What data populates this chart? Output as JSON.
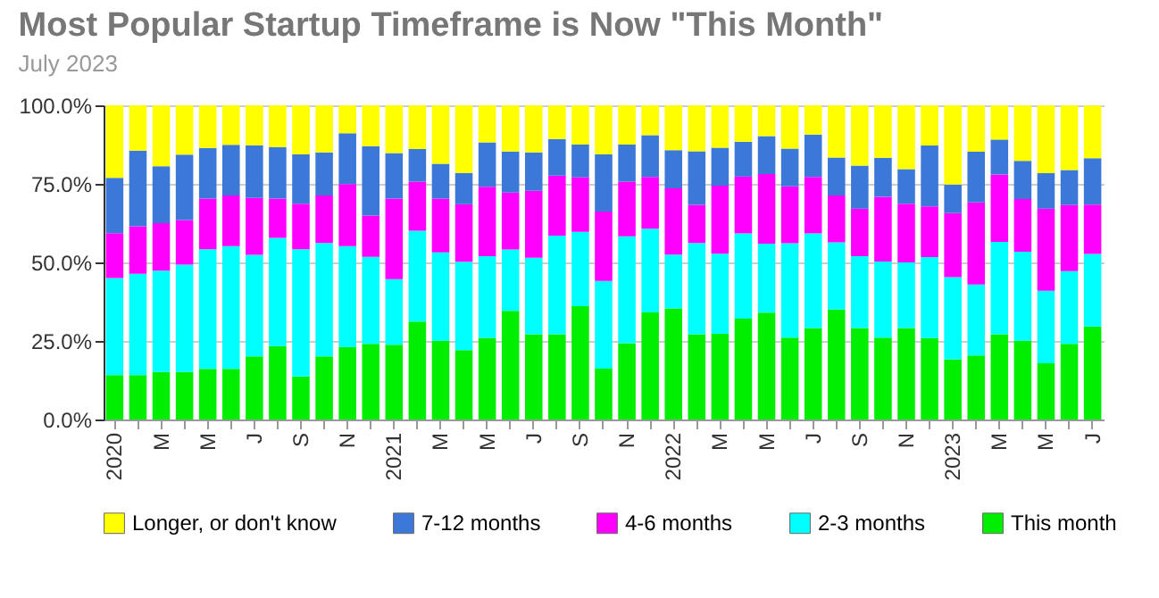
{
  "chart_data": {
    "type": "bar",
    "stacked": true,
    "title": "Most Popular Startup Timeframe is Now \"This Month\"",
    "subtitle": "July 2023",
    "categories": [
      "2020",
      null,
      "M",
      null,
      "M",
      null,
      "J",
      null,
      "S",
      null,
      "N",
      null,
      "2021",
      null,
      "M",
      null,
      "M",
      null,
      "J",
      null,
      "S",
      null,
      "N",
      null,
      "2022",
      null,
      "M",
      null,
      "M",
      null,
      "J",
      null,
      "S",
      null,
      "N",
      null,
      "2023",
      null,
      "M",
      null,
      "M",
      null,
      "J"
    ],
    "ylim": [
      0,
      100
    ],
    "yticks": [
      {
        "value": 0,
        "label": "0.0%"
      },
      {
        "value": 25,
        "label": "25.0%"
      },
      {
        "value": 50,
        "label": "50.0%"
      },
      {
        "value": 75,
        "label": "75.0%"
      },
      {
        "value": 100,
        "label": "100.0%"
      }
    ],
    "grid": "y",
    "legend": "bottom",
    "series": [
      {
        "name": "This month",
        "color": "#00ee00",
        "values": [
          14.1,
          14.1,
          15.1,
          15.1,
          16.1,
          16.1,
          20.1,
          23.4,
          13.7,
          20.1,
          23.1,
          24.1,
          23.8,
          31.2,
          25.1,
          22.1,
          26.0,
          34.6,
          27.1,
          27.1,
          36.1,
          16.2,
          24.3,
          34.1,
          35.4,
          27.1,
          27.3,
          32.1,
          34.0,
          26.1,
          29.1,
          35.0,
          29.1,
          26.1,
          29.1,
          25.9,
          19.2,
          20.4,
          27.1,
          25.1,
          17.9,
          24.1,
          29.6
        ]
      },
      {
        "name": "2-3 months",
        "color": "#00ffff",
        "values": [
          30.9,
          32.3,
          32.3,
          34.2,
          38.1,
          39.1,
          32.3,
          34.4,
          40.5,
          36.1,
          32.1,
          27.7,
          20.9,
          28.9,
          28.1,
          28.1,
          26.0,
          19.5,
          24.4,
          31.4,
          23.6,
          27.9,
          34.0,
          26.6,
          17.1,
          29.1,
          25.5,
          27.1,
          22.0,
          30.0,
          30.1,
          21.4,
          22.9,
          24.2,
          20.9,
          25.8,
          26.1,
          22.6,
          29.4,
          28.3,
          23.1,
          23.1,
          23.1
        ]
      },
      {
        "name": "4-6 months",
        "color": "#ff00ff",
        "values": [
          14.3,
          15.1,
          15.1,
          14.2,
          16.1,
          16.1,
          18.1,
          12.5,
          14.5,
          15.1,
          19.7,
          13.1,
          25.6,
          15.6,
          17.1,
          18.3,
          22.1,
          18.1,
          21.3,
          19.1,
          17.4,
          22.1,
          17.4,
          16.5,
          21.1,
          12.1,
          21.6,
          18.1,
          22.1,
          18.1,
          18.0,
          14.9,
          15.1,
          20.6,
          18.7,
          16.1,
          20.4,
          26.1,
          21.5,
          16.8,
          26.1,
          21.1,
          15.7
        ]
      },
      {
        "name": "7-12 months",
        "color": "#3c78d8",
        "values": [
          17.6,
          24.1,
          18.1,
          20.8,
          16.1,
          16.1,
          16.8,
          16.4,
          15.7,
          13.7,
          16.2,
          22.1,
          14.5,
          10.4,
          11.1,
          10.0,
          14.1,
          13.1,
          12.2,
          11.7,
          10.4,
          18.2,
          11.8,
          13.3,
          12.1,
          17.1,
          12.1,
          11.1,
          12.1,
          12.0,
          13.5,
          12.1,
          13.7,
          12.4,
          11.0,
          19.4,
          9.1,
          16.1,
          11.1,
          12.1,
          11.3,
          11.1,
          14.8
        ]
      },
      {
        "name": "Longer, or don't know",
        "color": "#ffff00",
        "values": [
          23.1,
          14.4,
          19.4,
          15.7,
          13.6,
          12.6,
          12.7,
          13.3,
          15.6,
          15.0,
          8.9,
          13.0,
          15.2,
          13.9,
          18.6,
          21.5,
          11.8,
          14.7,
          15.0,
          10.7,
          12.5,
          15.6,
          12.5,
          9.5,
          14.3,
          14.6,
          13.5,
          11.6,
          9.8,
          13.8,
          9.3,
          16.6,
          19.2,
          16.7,
          20.3,
          12.8,
          25.2,
          14.8,
          10.9,
          17.7,
          21.6,
          20.6,
          16.7
        ]
      }
    ]
  }
}
